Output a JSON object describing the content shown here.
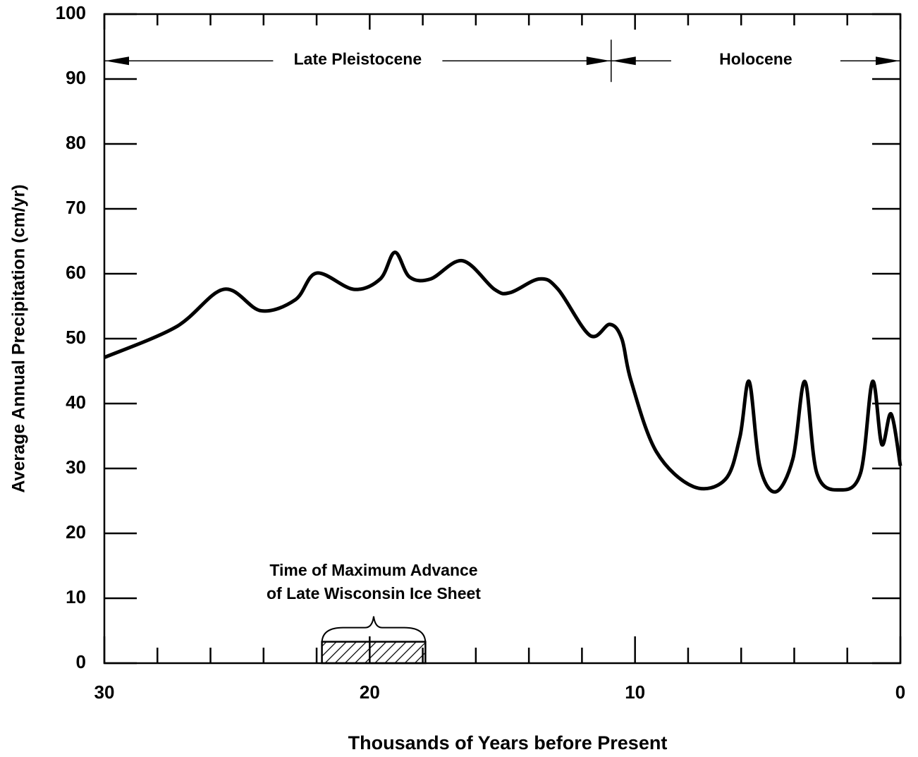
{
  "chart_data": {
    "type": "line",
    "x_label": "Thousands of Years before Present",
    "y_label": "Average Annual Precipitation (cm/yr)",
    "xlim": [
      30,
      0
    ],
    "xticks": [
      30,
      20,
      10,
      0
    ],
    "xminorticks": [
      28,
      26,
      24,
      22,
      18,
      16,
      14,
      12,
      8,
      6,
      4,
      2
    ],
    "ylim": [
      0,
      100
    ],
    "yticks": [
      0,
      10,
      20,
      30,
      40,
      50,
      60,
      70,
      80,
      90,
      100
    ],
    "color": "#000000",
    "x": [
      30,
      27.3,
      25.5,
      24.1,
      22.8,
      22.0,
      20.6,
      19.6,
      19.05,
      18.5,
      17.7,
      16.5,
      15.3,
      14.7,
      13.6,
      12.9,
      11.7,
      10.95,
      10.5,
      10.15,
      9.2,
      7.8,
      6.6,
      6.05,
      5.7,
      5.3,
      4.7,
      4.05,
      3.6,
      3.15,
      2.3,
      1.5,
      1.05,
      0.7,
      0.35,
      0
    ],
    "values": [
      47.1,
      51.8,
      57.6,
      54.3,
      56,
      60.1,
      57.6,
      59.2,
      63.3,
      59.5,
      59.2,
      62,
      57.6,
      57.1,
      59.2,
      57.6,
      50.5,
      52.2,
      50,
      43.5,
      32.6,
      27.2,
      28.3,
      34.8,
      43.4,
      30.4,
      26.4,
      31.5,
      43.4,
      29.3,
      26.7,
      29.3,
      43.4,
      33.7,
      38.4,
      30.4
    ],
    "periods": [
      {
        "label": "Late Pleistocene",
        "start": 30,
        "end": 10.9,
        "y": 92.8
      },
      {
        "label": "Holocene",
        "start": 10.9,
        "end": 0,
        "y": 92.8
      }
    ],
    "ice_sheet": {
      "lines": [
        "Time of Maximum Advance",
        "of Late Wisconsin Ice Sheet"
      ],
      "start": 21.8,
      "end": 17.9,
      "height": 3.3
    }
  }
}
